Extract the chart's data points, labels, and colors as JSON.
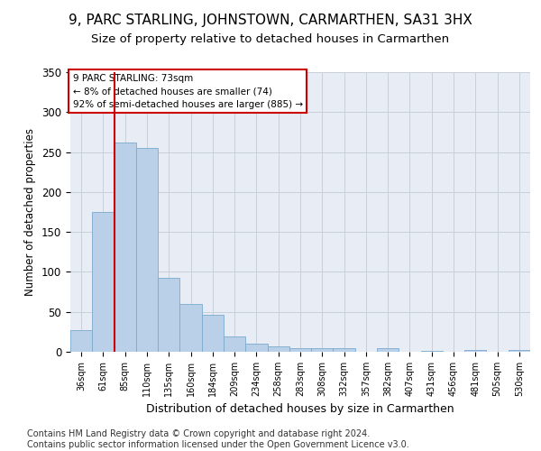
{
  "title": "9, PARC STARLING, JOHNSTOWN, CARMARTHEN, SA31 3HX",
  "subtitle": "Size of property relative to detached houses in Carmarthen",
  "xlabel": "Distribution of detached houses by size in Carmarthen",
  "ylabel": "Number of detached properties",
  "categories": [
    "36sqm",
    "61sqm",
    "85sqm",
    "110sqm",
    "135sqm",
    "160sqm",
    "184sqm",
    "209sqm",
    "234sqm",
    "258sqm",
    "283sqm",
    "308sqm",
    "332sqm",
    "357sqm",
    "382sqm",
    "407sqm",
    "431sqm",
    "456sqm",
    "481sqm",
    "505sqm",
    "530sqm"
  ],
  "values": [
    27,
    175,
    262,
    255,
    93,
    60,
    46,
    19,
    10,
    7,
    4,
    4,
    4,
    0,
    4,
    0,
    1,
    0,
    2,
    0,
    2
  ],
  "bar_color": "#bad0e8",
  "bar_edge_color": "#7aaace",
  "vline_x": 1.5,
  "vline_color": "#cc0000",
  "annotation_text": "9 PARC STARLING: 73sqm\n← 8% of detached houses are smaller (74)\n92% of semi-detached houses are larger (885) →",
  "annotation_box_color": "#ffffff",
  "annotation_box_edge": "#cc0000",
  "ylim": [
    0,
    350
  ],
  "yticks": [
    0,
    50,
    100,
    150,
    200,
    250,
    300,
    350
  ],
  "background_color": "#e8edf5",
  "footer": "Contains HM Land Registry data © Crown copyright and database right 2024.\nContains public sector information licensed under the Open Government Licence v3.0.",
  "title_fontsize": 11,
  "subtitle_fontsize": 9.5,
  "xlabel_fontsize": 9,
  "ylabel_fontsize": 8.5,
  "footer_fontsize": 7
}
